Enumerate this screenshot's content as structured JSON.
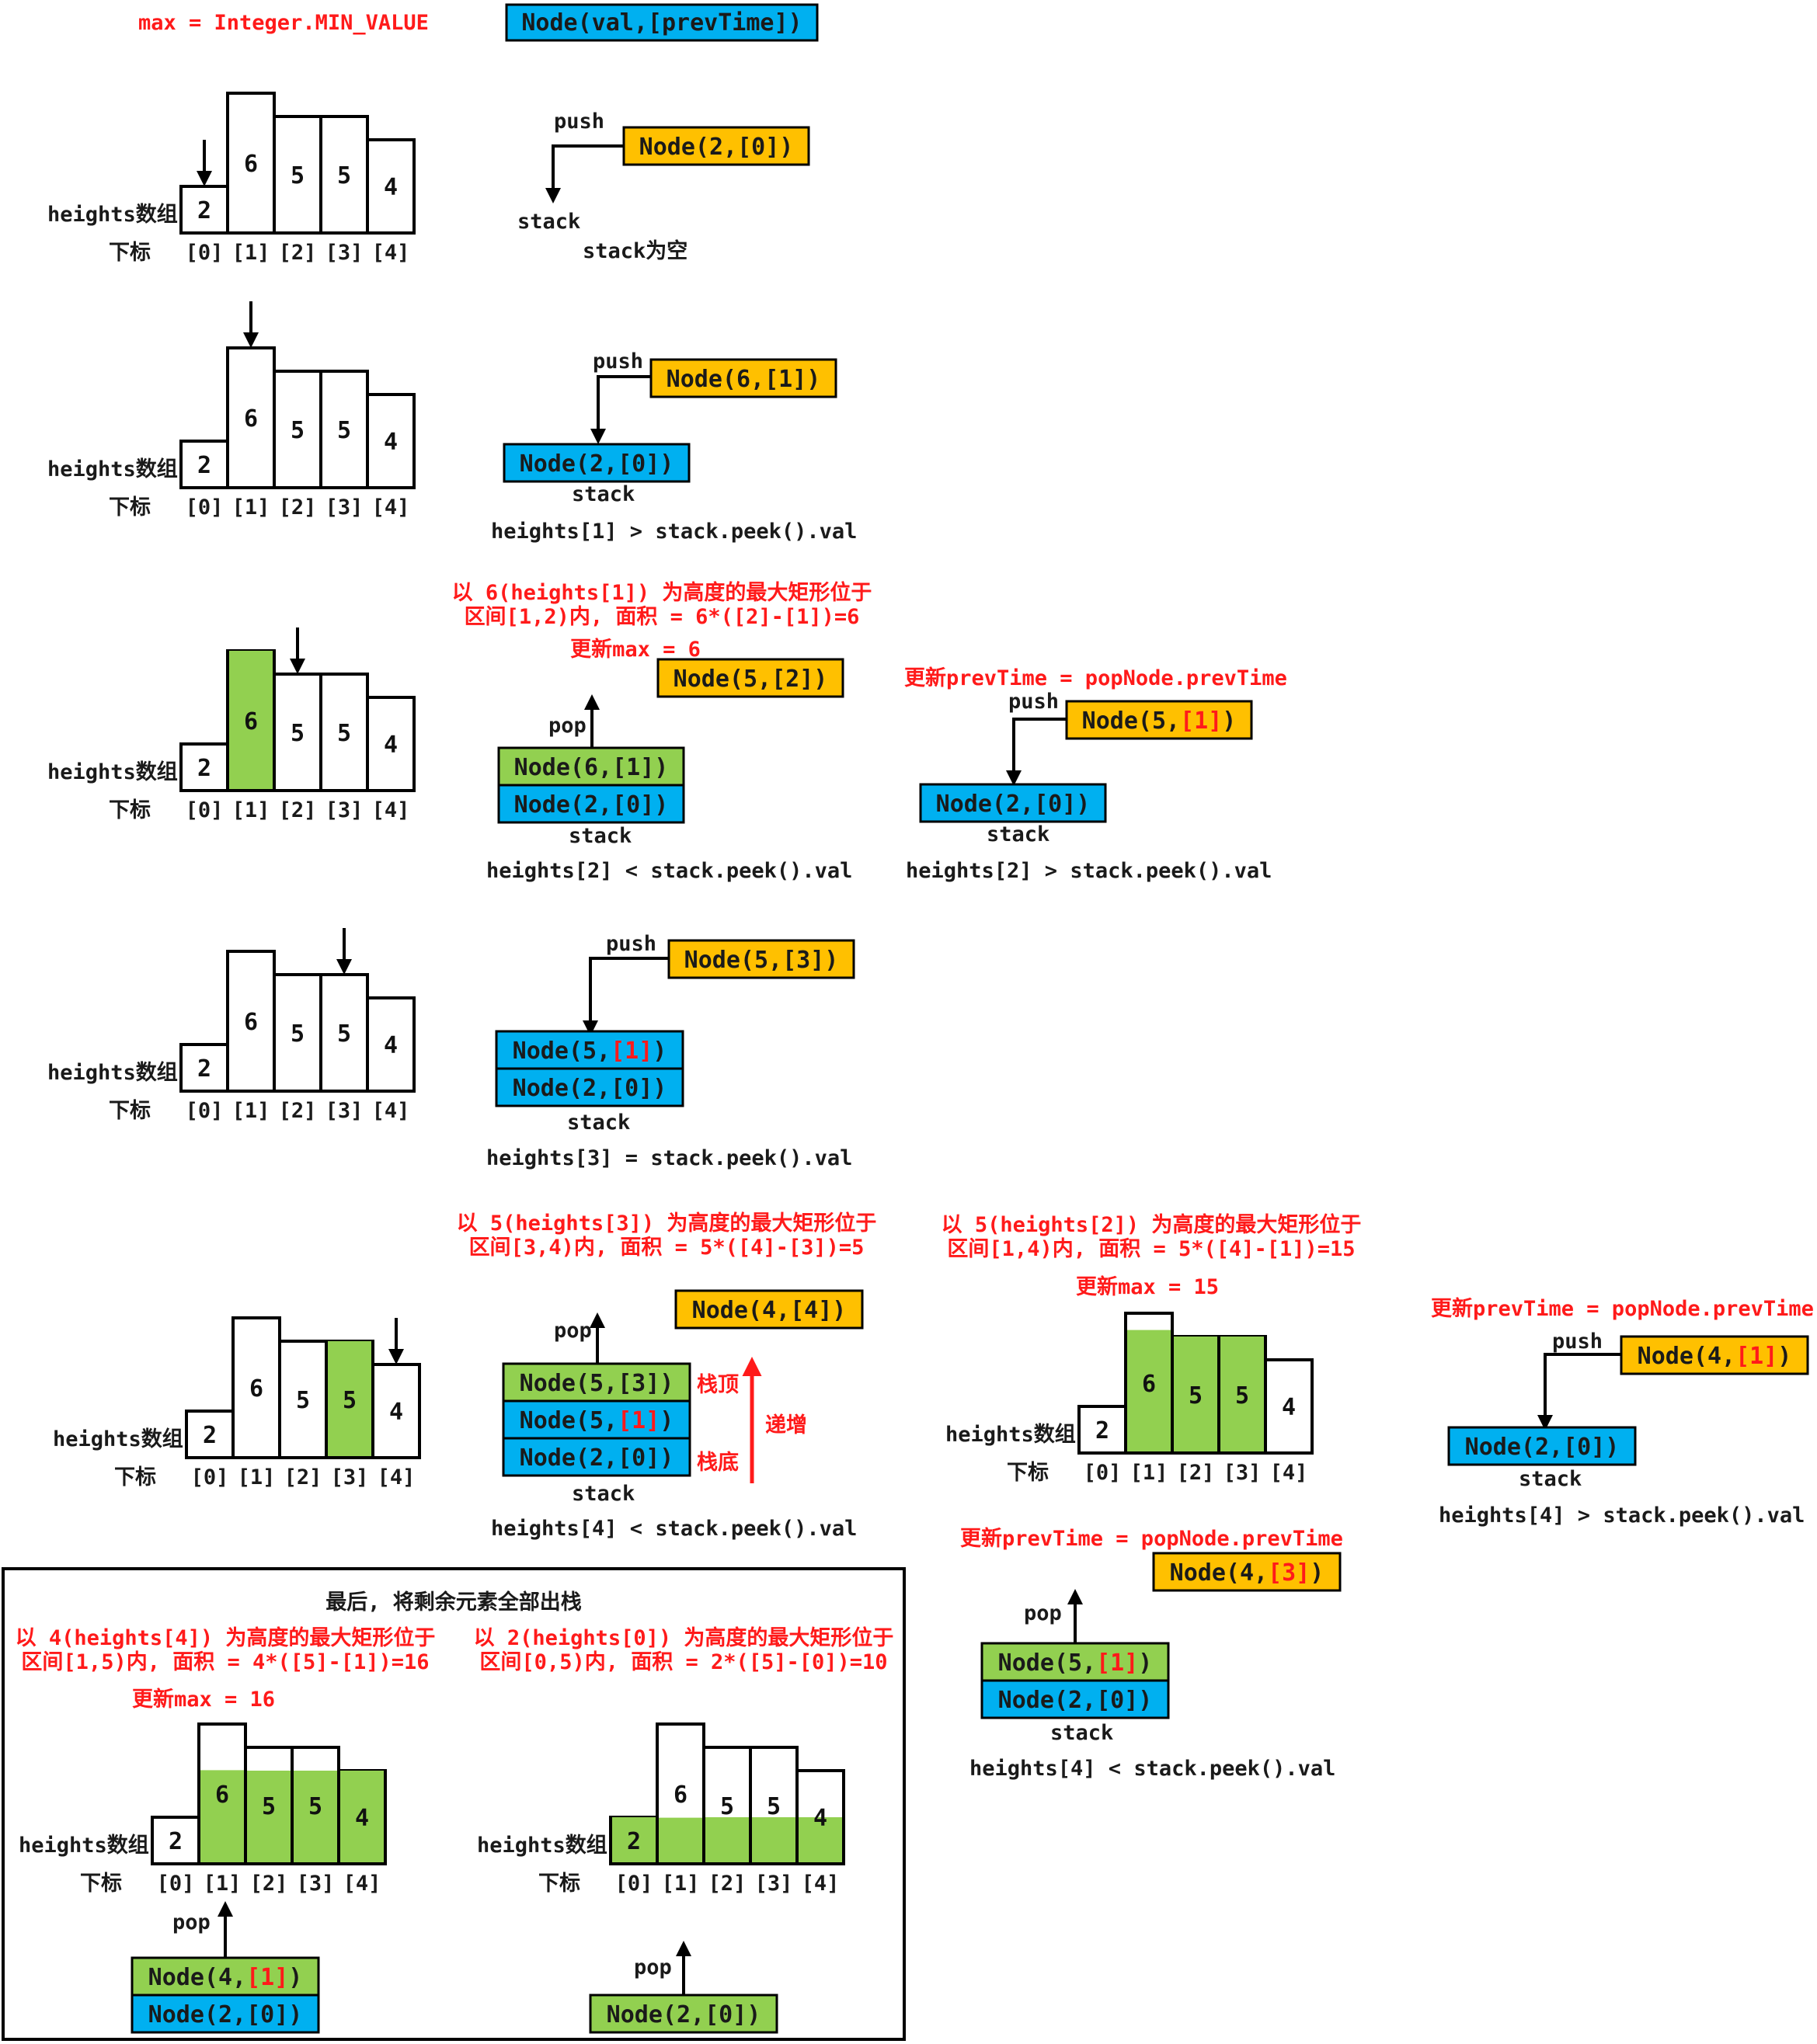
{
  "header": {
    "max_init": "max = Integer.MIN_VALUE",
    "legend_node": "Node(val,[prevTime])"
  },
  "labels": {
    "heights": "heights数组",
    "index": "下标",
    "stack": "stack",
    "push": "push",
    "pop": "pop",
    "indices": [
      "[0]",
      "[1]",
      "[2]",
      "[3]",
      "[4]"
    ],
    "bar_values": [
      "2",
      "6",
      "5",
      "5",
      "4"
    ],
    "top_of_stack": "栈顶",
    "bottom_of_stack": "栈底",
    "increasing": "递增",
    "stack_empty": "stack为空"
  },
  "step1": {
    "push_node": "Node(2,[0])"
  },
  "step2": {
    "push_node": "Node(6,[1])",
    "stack": [
      "Node(2,[0])"
    ],
    "compare": "heights[1] > stack.peek().val"
  },
  "step3": {
    "note_line1": "以 6(heights[1]) 为高度的最大矩形位于",
    "note_line2": "区间[1,2)内, 面积 = 6*([2]-[1])=6",
    "update_max": "更新max = 6",
    "new_node": "Node(5,[2])",
    "stack": [
      "Node(6,[1])",
      "Node(2,[0])"
    ],
    "compare": "heights[2] < stack.peek().val",
    "update_prev": "更新prevTime = popNode.prevTime",
    "push_node_pre": "Node(5,",
    "push_node_red": "[1]",
    "push_node_post": ")",
    "stack_b": [
      "Node(2,[0])"
    ],
    "compare_b": "heights[2] > stack.peek().val"
  },
  "step4": {
    "push_node": "Node(5,[3])",
    "stack_top_pre": "Node(5,",
    "stack_top_red": "[1]",
    "stack_top_post": ")",
    "stack_bottom": "Node(2,[0])",
    "compare": "heights[3] = stack.peek().val"
  },
  "step5": {
    "note_line1": "以 5(heights[3]) 为高度的最大矩形位于",
    "note_line2": "区间[3,4)内, 面积 = 5*([4]-[3])=5",
    "new_node": "Node(4,[4])",
    "stack_top": "Node(5,[3])",
    "stack_mid_pre": "Node(5,",
    "stack_mid_red": "[1]",
    "stack_mid_post": ")",
    "stack_bottom": "Node(2,[0])",
    "compare": "heights[4] < stack.peek().val",
    "note_b_line1": "以 5(heights[2]) 为高度的最大矩形位于",
    "note_b_line2": "区间[1,4)内, 面积 = 5*([4]-[1])=15",
    "update_max_b": "更新max = 15",
    "update_prev_c": "更新prevTime = popNode.prevTime",
    "push_node_c_pre": "Node(4,",
    "push_node_c_red": "[1]",
    "push_node_c_post": ")",
    "stack_c": [
      "Node(2,[0])"
    ],
    "compare_c": "heights[4] > stack.peek().val",
    "update_prev_d": "更新prevTime = popNode.prevTime",
    "node_d_pre": "Node(4,",
    "node_d_red": "[3]",
    "node_d_post": ")",
    "stack_d_top_pre": "Node(5,",
    "stack_d_top_red": "[1]",
    "stack_d_top_post": ")",
    "stack_d_bottom": "Node(2,[0])",
    "compare_d": "heights[4] < stack.peek().val"
  },
  "final": {
    "title": "最后, 将剩余元素全部出栈",
    "left_line1": "以 4(heights[4]) 为高度的最大矩形位于",
    "left_line2": "区间[1,5)内, 面积 = 4*([5]-[1])=16",
    "left_update": "更新max = 16",
    "left_stack_top_pre": "Node(4,",
    "left_stack_top_red": "[1]",
    "left_stack_top_post": ")",
    "left_stack_bottom": "Node(2,[0])",
    "right_line1": "以 2(heights[0]) 为高度的最大矩形位于",
    "right_line2": "区间[0,5)内, 面积 = 2*([5]-[0])=10",
    "right_stack": "Node(2,[0])"
  },
  "colors": {
    "orange": "#ffc000",
    "blue": "#00b0f0",
    "green": "#92d050",
    "red": "#ff1a1a"
  }
}
